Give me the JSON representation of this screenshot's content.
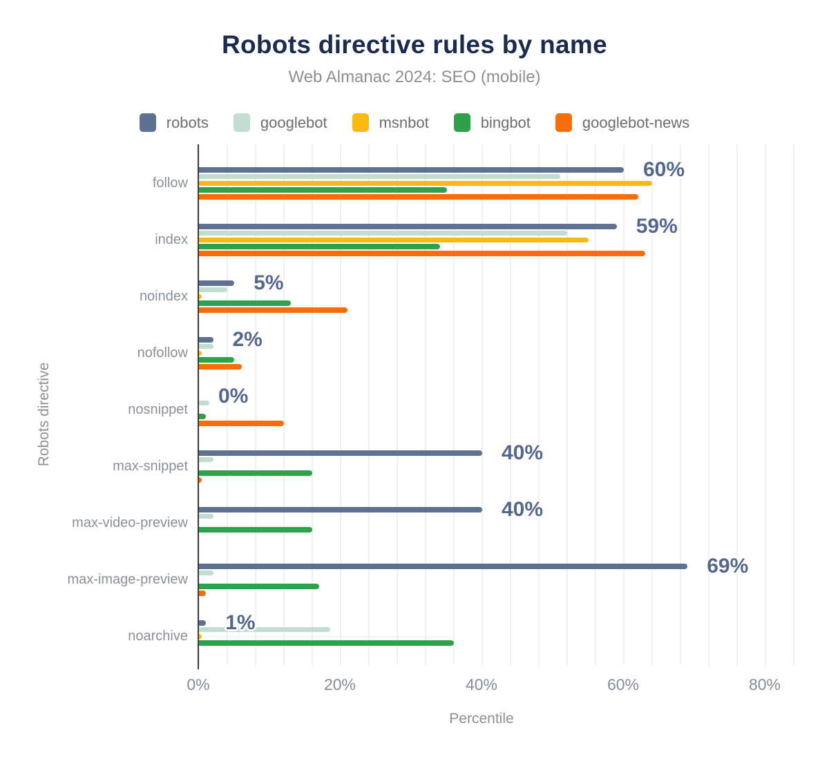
{
  "chart_data": {
    "type": "bar",
    "orientation": "horizontal",
    "title": "Robots directive rules by name",
    "subtitle": "Web Almanac 2024: SEO (mobile)",
    "xlabel": "Percentile",
    "ylabel": "Robots directive",
    "legend_position": "top",
    "grid": "minor vertical lines every 4%",
    "x_axis": {
      "tick_labels": [
        "0%",
        "20%",
        "40%",
        "60%",
        "80%"
      ],
      "tick_values": [
        0,
        20,
        40,
        60,
        80
      ],
      "max": 85.5
    },
    "categories": [
      "follow",
      "index",
      "noindex",
      "nofollow",
      "nosnippet",
      "max-snippet",
      "max-video-preview",
      "max-image-preview",
      "noarchive"
    ],
    "series": [
      {
        "name": "robots",
        "color": "#5f7191",
        "values": [
          60,
          59,
          5,
          2,
          0,
          40,
          40,
          69,
          1
        ]
      },
      {
        "name": "googlebot",
        "color": "#c0ddcf",
        "values": [
          51,
          52,
          4,
          2,
          1.5,
          2,
          2,
          2,
          18.5
        ]
      },
      {
        "name": "msnbot",
        "color": "#fbba12",
        "values": [
          64,
          55,
          0.4,
          0.4,
          0,
          0,
          0,
          0,
          0.4
        ]
      },
      {
        "name": "bingbot",
        "color": "#2fa14b",
        "values": [
          35,
          34,
          13,
          5,
          1,
          16,
          16,
          17,
          36
        ]
      },
      {
        "name": "googlebot-news",
        "color": "#fb6c0a",
        "values": [
          62,
          63,
          21,
          6,
          12,
          0.4,
          0,
          1,
          0
        ]
      }
    ],
    "value_labels": {
      "labeled_series": "robots",
      "labels": [
        "60%",
        "59%",
        "5%",
        "2%",
        "0%",
        "40%",
        "40%",
        "69%",
        "1%"
      ]
    }
  },
  "colors": {
    "title": "#1b2b4d",
    "subtitle_gray": "#8f8f8f",
    "axis_line": "#3b3b3b",
    "gridline": "#efefef",
    "value_label": "#55678f",
    "background": "#ffffff"
  }
}
